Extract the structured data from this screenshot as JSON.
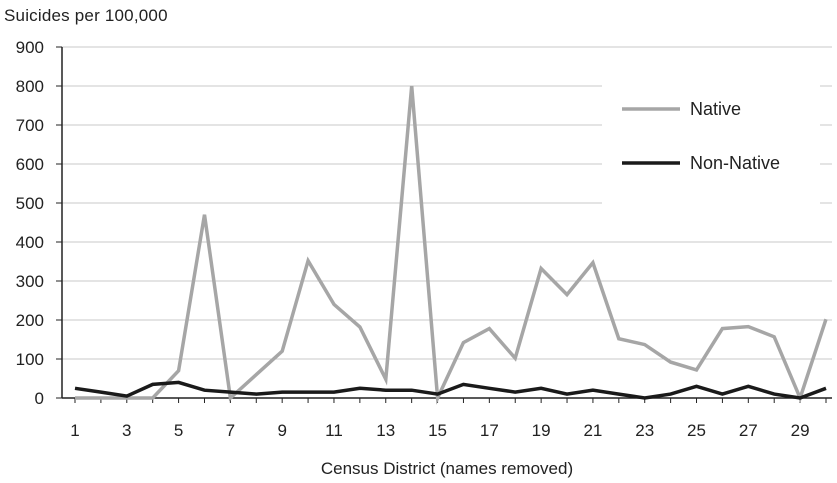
{
  "chart_data": {
    "type": "line",
    "ylabel": "Suicides per 100,000",
    "xlabel": "Census District  (names removed)",
    "ylim": [
      0,
      900
    ],
    "yticks": [
      0,
      100,
      200,
      300,
      400,
      500,
      600,
      700,
      800,
      900
    ],
    "x": [
      1,
      2,
      3,
      4,
      5,
      6,
      7,
      8,
      9,
      10,
      11,
      12,
      13,
      14,
      15,
      16,
      17,
      18,
      19,
      20,
      21,
      22,
      23,
      24,
      25,
      26,
      27,
      28,
      29,
      30
    ],
    "xticks": [
      1,
      3,
      5,
      7,
      9,
      11,
      13,
      15,
      17,
      19,
      21,
      23,
      25,
      27,
      29
    ],
    "grid": "horizontal",
    "legend": "right",
    "series": [
      {
        "name": "Native",
        "color": "#a6a6a6",
        "values": [
          0,
          0,
          0,
          0,
          70,
          470,
          0,
          60,
          120,
          352,
          240,
          182,
          48,
          800,
          0,
          142,
          178,
          102,
          332,
          265,
          347,
          152,
          137,
          92,
          72,
          178,
          183,
          157,
          0,
          202
        ]
      },
      {
        "name": "Non-Native",
        "color": "#1a1a1a",
        "values": [
          25,
          15,
          5,
          35,
          40,
          20,
          15,
          10,
          15,
          15,
          15,
          25,
          20,
          20,
          10,
          35,
          25,
          15,
          25,
          10,
          20,
          10,
          0,
          10,
          30,
          10,
          30,
          10,
          0,
          25
        ]
      }
    ]
  }
}
